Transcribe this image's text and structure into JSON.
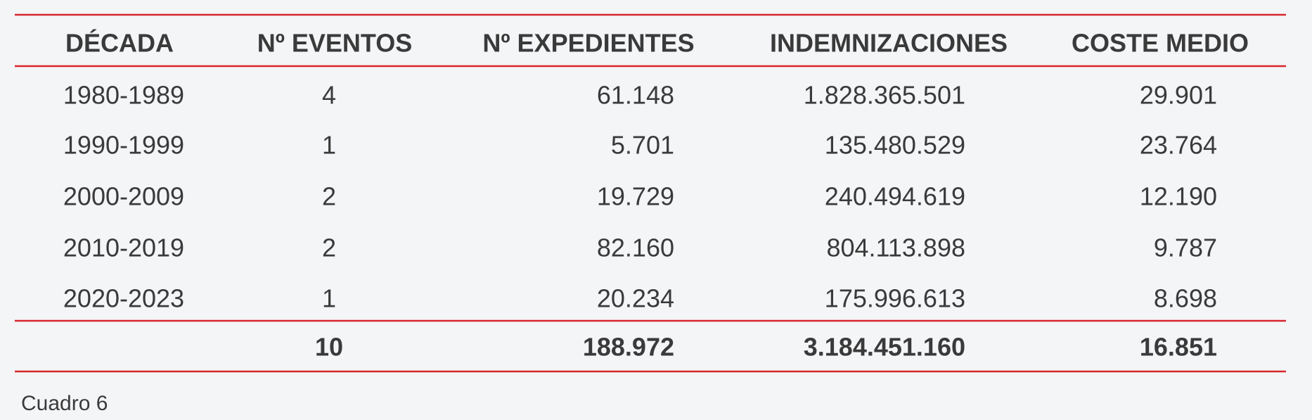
{
  "table": {
    "header": [
      "DÉCADA",
      "Nº EVENTOS",
      "Nº EXPEDIENTES",
      "INDEMNIZACIONES",
      "COSTE MEDIO"
    ],
    "rows": [
      [
        "1980-1989",
        "4",
        "61.148",
        "1.828.365.501",
        "29.901"
      ],
      [
        "1990-1999",
        "1",
        "5.701",
        "135.480.529",
        "23.764"
      ],
      [
        "2000-2009",
        "2",
        "19.729",
        "240.494.619",
        "12.190"
      ],
      [
        "2010-2019",
        "2",
        "82.160",
        "804.113.898",
        "9.787"
      ],
      [
        "2020-2023",
        "1",
        "20.234",
        "175.996.613",
        "8.698"
      ]
    ],
    "totals": [
      "10",
      "188.972",
      "3.184.451.160",
      "16.851"
    ]
  },
  "caption": "Cuadro 6"
}
